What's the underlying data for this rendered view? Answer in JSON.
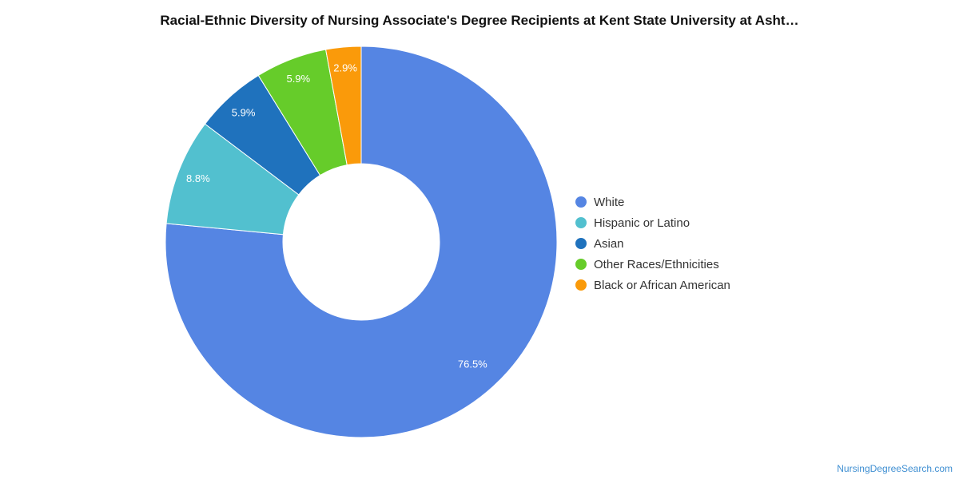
{
  "chart_data": {
    "type": "pie",
    "title": "Racial-Ethnic Diversity of Nursing Associate's Degree Recipients at Kent State University at Asht…",
    "donut": true,
    "legend_position": "right",
    "slices": [
      {
        "label": "White",
        "value": 76.5,
        "display": "76.5%",
        "color": "#5585e3"
      },
      {
        "label": "Hispanic or Latino",
        "value": 8.8,
        "display": "8.8%",
        "color": "#52c0cf"
      },
      {
        "label": "Asian",
        "value": 5.9,
        "display": "5.9%",
        "color": "#1f72bd"
      },
      {
        "label": "Other Races/Ethnicities",
        "value": 5.9,
        "display": "5.9%",
        "color": "#66cc2a"
      },
      {
        "label": "Black or African American",
        "value": 2.9,
        "display": "2.9%",
        "color": "#fa9a0a"
      }
    ]
  },
  "watermark": "NursingDegreeSearch.com"
}
